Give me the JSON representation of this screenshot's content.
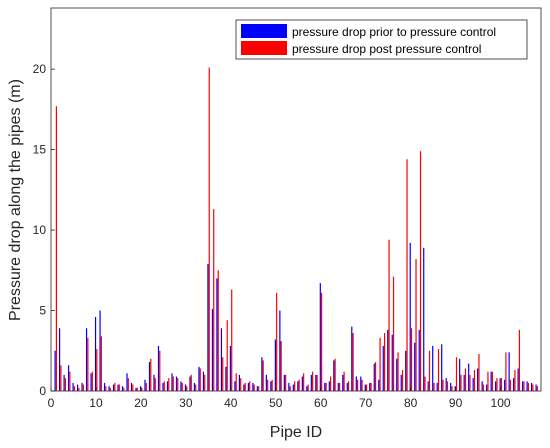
{
  "chart_data": {
    "type": "bar",
    "title": "",
    "xlabel": "Pipe ID",
    "ylabel": "Pressure drop along the pipes (m)",
    "xlim": [
      0,
      109
    ],
    "ylim": [
      0,
      23.8
    ],
    "x_ticks": [
      0,
      10,
      20,
      30,
      40,
      50,
      60,
      70,
      80,
      90,
      100
    ],
    "y_ticks": [
      0,
      5,
      10,
      15,
      20
    ],
    "grid": false,
    "legend_position": "top-right",
    "series": [
      {
        "name": "pressure drop prior to pressure control",
        "color": "#0000ff",
        "values": [
          2.5,
          3.9,
          1.0,
          1.6,
          0.5,
          0.4,
          0.5,
          3.9,
          1.1,
          4.6,
          5.0,
          0.5,
          0.3,
          0.4,
          0.4,
          0.3,
          1.1,
          0.5,
          0.2,
          0.3,
          0.7,
          1.8,
          1.0,
          2.8,
          0.5,
          0.6,
          1.1,
          0.9,
          0.6,
          0.4,
          0.9,
          0.5,
          1.5,
          1.2,
          7.9,
          5.1,
          7.0,
          3.9,
          1.5,
          2.8,
          0.6,
          1.0,
          0.4,
          0.5,
          0.5,
          0.3,
          2.1,
          1.0,
          0.6,
          3.2,
          5.0,
          1.0,
          0.5,
          0.4,
          0.6,
          0.9,
          0.3,
          1.0,
          1.0,
          6.7,
          0.5,
          0.6,
          1.9,
          0.5,
          1.0,
          0.5,
          4.0,
          0.9,
          0.9,
          0.4,
          0.5,
          1.7,
          0.7,
          2.8,
          3.8,
          3.5,
          2.0,
          1.0,
          2.5,
          9.2,
          3.0,
          3.8,
          8.9,
          0.6,
          2.8,
          0.5,
          2.9,
          0.8,
          0.5,
          0.3,
          2.0,
          1.0,
          1.7,
          0.8,
          1.4,
          0.6,
          0.4,
          1.2,
          0.6,
          0.8,
          0.7,
          2.4,
          0.8,
          1.4,
          0.6,
          0.6,
          0.5,
          0.4
        ]
      },
      {
        "name": "pressure drop post pressure control",
        "color": "#ff0000",
        "values": [
          17.7,
          1.6,
          0.8,
          1.2,
          0.3,
          0.2,
          0.4,
          3.3,
          1.2,
          2.6,
          3.4,
          0.3,
          0.2,
          0.5,
          0.4,
          0.2,
          0.8,
          0.4,
          0.2,
          0.2,
          0.5,
          2.0,
          0.8,
          2.5,
          0.6,
          0.8,
          0.9,
          0.8,
          0.5,
          0.3,
          1.0,
          0.4,
          1.4,
          1.0,
          20.1,
          11.3,
          7.5,
          2.1,
          4.4,
          6.3,
          1.1,
          0.8,
          0.5,
          0.6,
          0.4,
          0.3,
          1.9,
          0.7,
          0.7,
          6.1,
          3.1,
          1.0,
          0.3,
          0.6,
          0.7,
          1.1,
          0.4,
          1.2,
          1.0,
          6.1,
          0.5,
          0.9,
          2.0,
          0.5,
          1.2,
          0.6,
          3.6,
          0.7,
          0.7,
          0.4,
          0.5,
          1.8,
          3.3,
          3.6,
          9.4,
          7.1,
          2.4,
          1.3,
          14.4,
          3.9,
          8.2,
          14.9,
          0.9,
          2.5,
          0.5,
          2.6,
          0.7,
          0.6,
          0.3,
          2.1,
          1.0,
          1.4,
          1.0,
          1.3,
          2.3,
          0.4,
          1.2,
          1.2,
          0.8,
          0.8,
          2.4,
          0.7,
          1.3,
          3.8,
          0.6,
          0.5,
          0.4,
          0.3
        ]
      }
    ]
  }
}
